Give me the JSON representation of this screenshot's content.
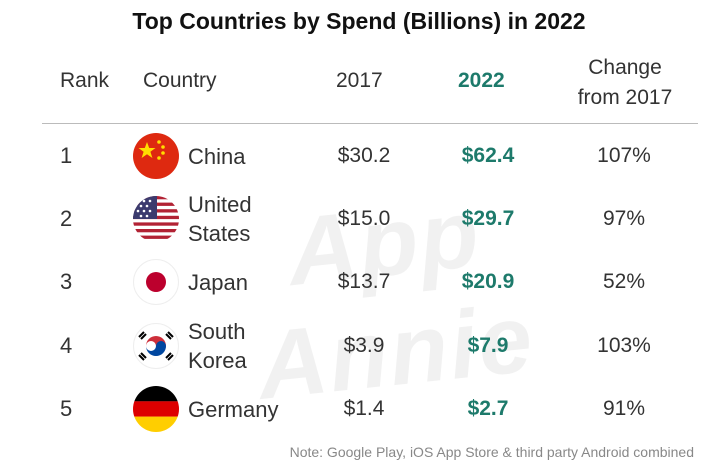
{
  "chart_data": {
    "type": "table",
    "title": "Top Countries by Spend (Billions) in 2022",
    "columns": [
      "Rank",
      "Country",
      "2017",
      "2022",
      "Change from 2017"
    ],
    "rows": [
      {
        "rank": "1",
        "country": "China",
        "v2017": "$30.2",
        "v2022": "$62.4",
        "change": "107%",
        "flag": "china-flag-icon"
      },
      {
        "rank": "2",
        "country": "United States",
        "v2017": "$15.0",
        "v2022": "$29.7",
        "change": "97%",
        "flag": "usa-flag-icon"
      },
      {
        "rank": "3",
        "country": "Japan",
        "v2017": "$13.7",
        "v2022": "$20.9",
        "change": "52%",
        "flag": "japan-flag-icon"
      },
      {
        "rank": "4",
        "country": "South Korea",
        "v2017": "$3.9",
        "v2022": "$7.9",
        "change": "103%",
        "flag": "south-korea-flag-icon"
      },
      {
        "rank": "5",
        "country": "Germany",
        "v2017": "$1.4",
        "v2022": "$2.7",
        "change": "91%",
        "flag": "germany-flag-icon"
      }
    ],
    "highlight_color": "#1d7a6b"
  },
  "headers": {
    "rank": "Rank",
    "country": "Country",
    "y2017": "2017",
    "y2022": "2022",
    "change_line1": "Change",
    "change_line2": "from 2017"
  },
  "watermark": "App Annie",
  "note": "Note: Google Play, iOS App Store & third party Android combined"
}
